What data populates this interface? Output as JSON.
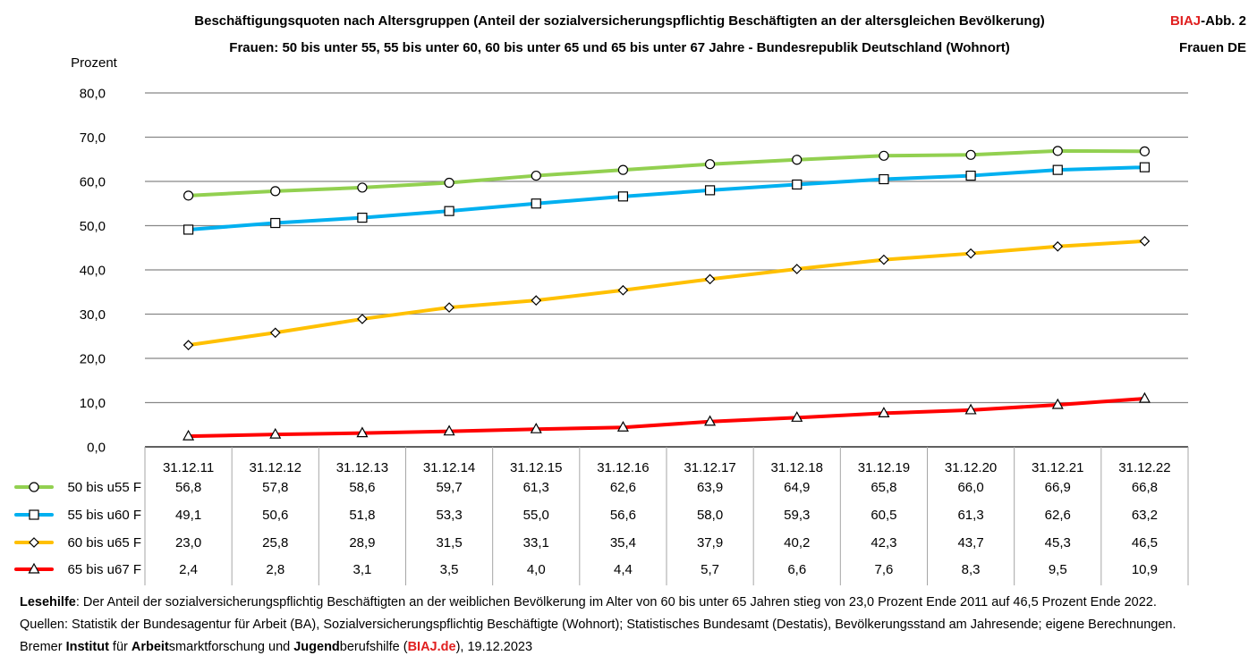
{
  "header": {
    "title_line1": "Beschäftigungsquoten nach Altersgruppen (Anteil der sozialversicherungspflichtig Beschäftigten an der altersgleichen Bevölkerung)",
    "title_line2": "Frauen: 50 bis unter 55, 55 bis unter 60, 60 bis unter 65 und 65 bis unter 67 Jahre - Bundesrepublik Deutschland (Wohnort)",
    "brand_red": "BIAJ",
    "brand_rest": "-Abb. 2",
    "subtitle_right": "Frauen DE"
  },
  "chart_data": {
    "type": "line",
    "title": "Beschäftigungsquoten nach Altersgruppen (Anteil der sozialversicherungspflichtig Beschäftigten an der altersgleichen Bevölkerung)",
    "ylabel": "Prozent",
    "ylim": [
      0,
      80
    ],
    "yticks": [
      "80,0",
      "70,0",
      "60,0",
      "50,0",
      "40,0",
      "30,0",
      "20,0",
      "10,0",
      "0,0"
    ],
    "ytick_values": [
      80,
      70,
      60,
      50,
      40,
      30,
      20,
      10,
      0
    ],
    "grid": true,
    "categories": [
      "31.12.11",
      "31.12.12",
      "31.12.13",
      "31.12.14",
      "31.12.15",
      "31.12.16",
      "31.12.17",
      "31.12.18",
      "31.12.19",
      "31.12.20",
      "31.12.21",
      "31.12.22"
    ],
    "series": [
      {
        "name": "50 bis u55 F",
        "color": "#92d050",
        "marker": "circle",
        "values": [
          56.8,
          57.8,
          58.6,
          59.7,
          61.3,
          62.6,
          63.9,
          64.9,
          65.8,
          66.0,
          66.9,
          66.8
        ],
        "labels": [
          "56,8",
          "57,8",
          "58,6",
          "59,7",
          "61,3",
          "62,6",
          "63,9",
          "64,9",
          "65,8",
          "66,0",
          "66,9",
          "66,8"
        ]
      },
      {
        "name": "55 bis u60 F",
        "color": "#00b0f0",
        "marker": "square",
        "values": [
          49.1,
          50.6,
          51.8,
          53.3,
          55.0,
          56.6,
          58.0,
          59.3,
          60.5,
          61.3,
          62.6,
          63.2
        ],
        "labels": [
          "49,1",
          "50,6",
          "51,8",
          "53,3",
          "55,0",
          "56,6",
          "58,0",
          "59,3",
          "60,5",
          "61,3",
          "62,6",
          "63,2"
        ]
      },
      {
        "name": "60 bis u65 F",
        "color": "#ffc000",
        "marker": "diamond",
        "values": [
          23.0,
          25.8,
          28.9,
          31.5,
          33.1,
          35.4,
          37.9,
          40.2,
          42.3,
          43.7,
          45.3,
          46.5
        ],
        "labels": [
          "23,0",
          "25,8",
          "28,9",
          "31,5",
          "33,1",
          "35,4",
          "37,9",
          "40,2",
          "42,3",
          "43,7",
          "45,3",
          "46,5"
        ]
      },
      {
        "name": "65 bis u67 F",
        "color": "#ff0000",
        "marker": "triangle",
        "values": [
          2.4,
          2.8,
          3.1,
          3.5,
          4.0,
          4.4,
          5.7,
          6.6,
          7.6,
          8.3,
          9.5,
          10.9
        ],
        "labels": [
          "2,4",
          "2,8",
          "3,1",
          "3,5",
          "4,0",
          "4,4",
          "5,7",
          "6,6",
          "7,6",
          "8,3",
          "9,5",
          "10,9"
        ]
      }
    ]
  },
  "footer": {
    "line1_bold": "Lesehilfe",
    "line1_rest": ": Der Anteil der sozialversicherungspflichtig Beschäftigten an der weiblichen Bevölkerung im Alter von 60 bis unter 65 Jahren stieg von 23,0 Prozent Ende 2011 auf 46,5 Prozent Ende 2022.",
    "line2": "Quellen: Statistik der Bundesagentur für Arbeit (BA), Sozialversicherungspflichtig Beschäftigte (Wohnort); Statistisches Bundesamt (Destatis), Bevölkerungsstand am Jahresende; eigene Berechnungen.",
    "line3_p1": "Bremer ",
    "line3_b1": "Institut",
    "line3_p2": " für ",
    "line3_b2": "Arbeit",
    "line3_p3": "smarktforschung und ",
    "line3_b3": "Jugend",
    "line3_p4": "berufshilfe (",
    "line3_site": "BIAJ.de",
    "line3_p5": "), 19.12.2023"
  }
}
